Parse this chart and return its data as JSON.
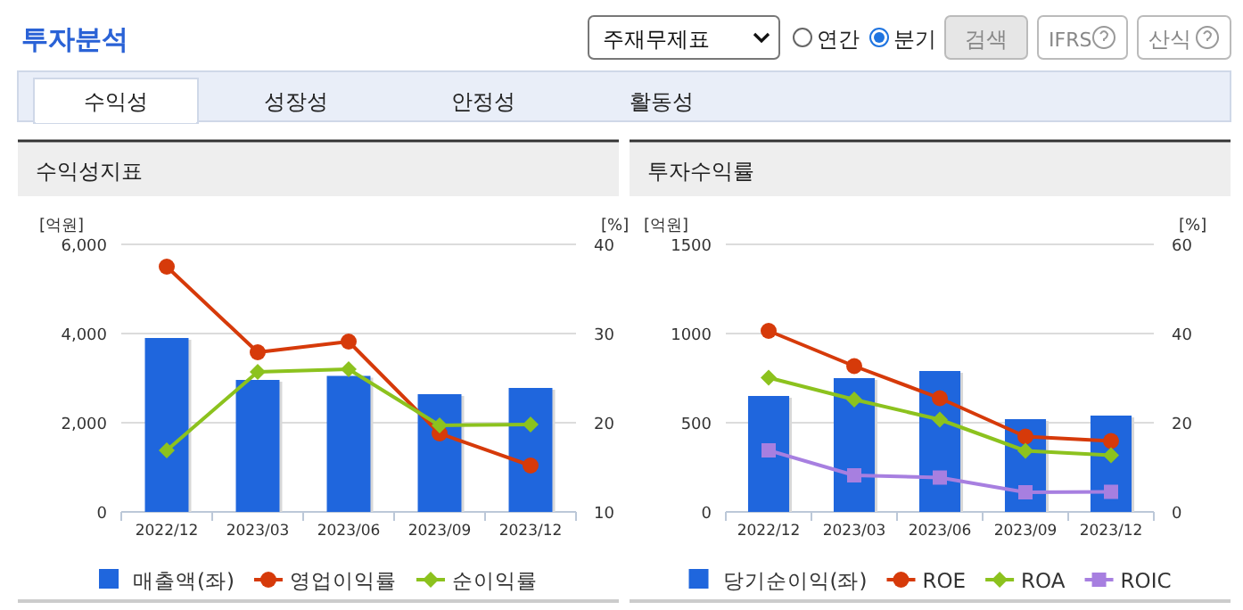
{
  "chart_data": [
    {
      "type": "other",
      "title": "투자분석",
      "annotations": [
        "주재무제표",
        "연간",
        "분기",
        "검색",
        "IFRS",
        "산식",
        "수익성",
        "성장성",
        "안정성",
        "활동성"
      ]
    },
    {
      "type": "bar",
      "title": "수익성지표",
      "ylabel": "[억원]",
      "y2label": "[%]",
      "categories": [
        "2022/12",
        "2023/03",
        "2023/06",
        "2023/09",
        "2023/12"
      ],
      "series": [
        {
          "name": "매출액(좌)",
          "type": "bar",
          "color": "#1f66dd",
          "values": [
            3900,
            2960,
            3050,
            2640,
            2780
          ]
        },
        {
          "name": "영업이익률",
          "type": "line",
          "axis": "y2",
          "marker": "circle",
          "color": "#d63a0a",
          "values": [
            37.5,
            27.9,
            29.1,
            18.8,
            15.2
          ]
        },
        {
          "name": "순이익률",
          "type": "line",
          "axis": "y2",
          "marker": "diamond",
          "color": "#8cc21e",
          "values": [
            16.9,
            25.7,
            26.0,
            19.7,
            19.8
          ]
        }
      ],
      "ylim": [
        0,
        6000
      ],
      "yticks": [
        0,
        {
          "value": 2000,
          "label": "2,000"
        },
        {
          "value": 4000,
          "label": "4,000"
        },
        {
          "value": 6000,
          "label": "6,000"
        }
      ],
      "y2lim": [
        10,
        40
      ],
      "y2ticks": [
        10,
        20,
        30,
        40
      ],
      "grid": "y",
      "legend": "bottom"
    },
    {
      "type": "bar",
      "title": "투자수익률",
      "ylabel": "[억원]",
      "y2label": "[%]",
      "categories": [
        "2022/12",
        "2023/03",
        "2023/06",
        "2023/09",
        "2023/12"
      ],
      "series": [
        {
          "name": "당기순이익(좌)",
          "type": "bar",
          "color": "#1f66dd",
          "values": [
            650,
            750,
            790,
            520,
            540
          ]
        },
        {
          "name": "ROE",
          "type": "line",
          "axis": "y2",
          "marker": "circle",
          "color": "#d63a0a",
          "values": [
            40.6,
            32.7,
            25.5,
            16.9,
            15.9
          ]
        },
        {
          "name": "ROA",
          "type": "line",
          "axis": "y2",
          "marker": "diamond",
          "color": "#8cc21e",
          "values": [
            30.1,
            25.2,
            20.7,
            13.7,
            12.7
          ]
        },
        {
          "name": "ROIC",
          "type": "line",
          "axis": "y2",
          "marker": "square",
          "color": "#a77fe0",
          "values": [
            13.8,
            8.2,
            7.7,
            4.4,
            4.5
          ]
        }
      ],
      "ylim": [
        0,
        1500
      ],
      "yticks": [
        0,
        500,
        1000,
        1500
      ],
      "y2lim": [
        0,
        60
      ],
      "y2ticks": [
        0,
        20,
        40,
        60
      ],
      "grid": "y",
      "legend": "bottom"
    }
  ]
}
